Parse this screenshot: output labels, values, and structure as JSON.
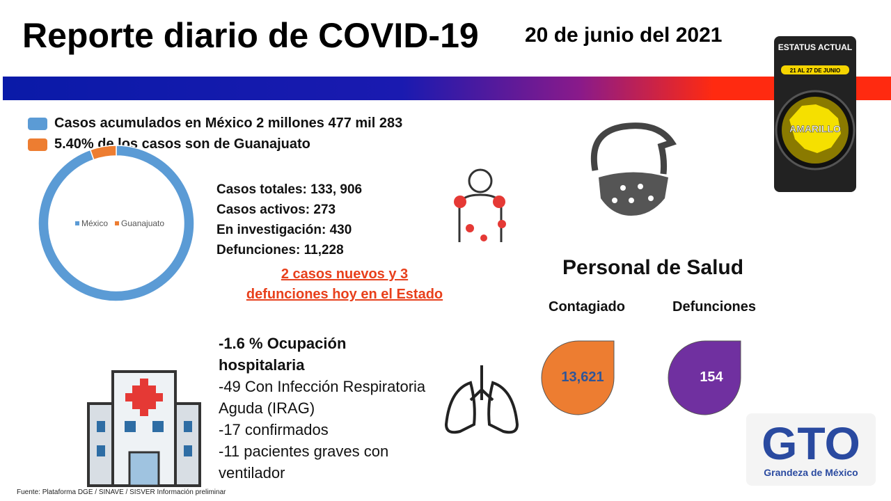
{
  "header": {
    "title": "Reporte diario de COVID-19",
    "date": "20 de junio del 2021"
  },
  "status": {
    "label": "ESTATUS ACTUAL",
    "dates": "21 AL 27 DE JUNIO",
    "color_name": "AMARILLO"
  },
  "summary": [
    "Casos acumulados en México 2 millones 477 mil 283",
    "5.40% de los casos  son de Guanajuato"
  ],
  "donut": {
    "labels": [
      "México",
      "Guanajuato"
    ],
    "values": [
      94.6,
      5.4
    ],
    "colors": [
      "#5b9bd5",
      "#ed7d31"
    ]
  },
  "stats": [
    "Casos totales: 133, 906",
    "Casos activos: 273",
    "En investigación: 430",
    "Defunciones: 11,228"
  ],
  "news": [
    "2 casos nuevos y  3",
    "defunciones hoy en el Estado"
  ],
  "hospital": [
    "-1.6 % Ocupación hospitalaria",
    "-49 Con Infección Respiratoria Aguda (IRAG)",
    "-17 confirmados",
    "-11 pacientes graves con ventilador"
  ],
  "health_staff": {
    "title": "Personal de Salud",
    "infected_label": "Contagiado",
    "infected": "13,621",
    "deaths_label": "Defunciones",
    "deaths": "154"
  },
  "logo": {
    "mark": "GTO",
    "tagline": "Grandeza de México"
  },
  "footnote": "Fuente: Plataforma DGE / SINAVE / SISVER  Información preliminar"
}
